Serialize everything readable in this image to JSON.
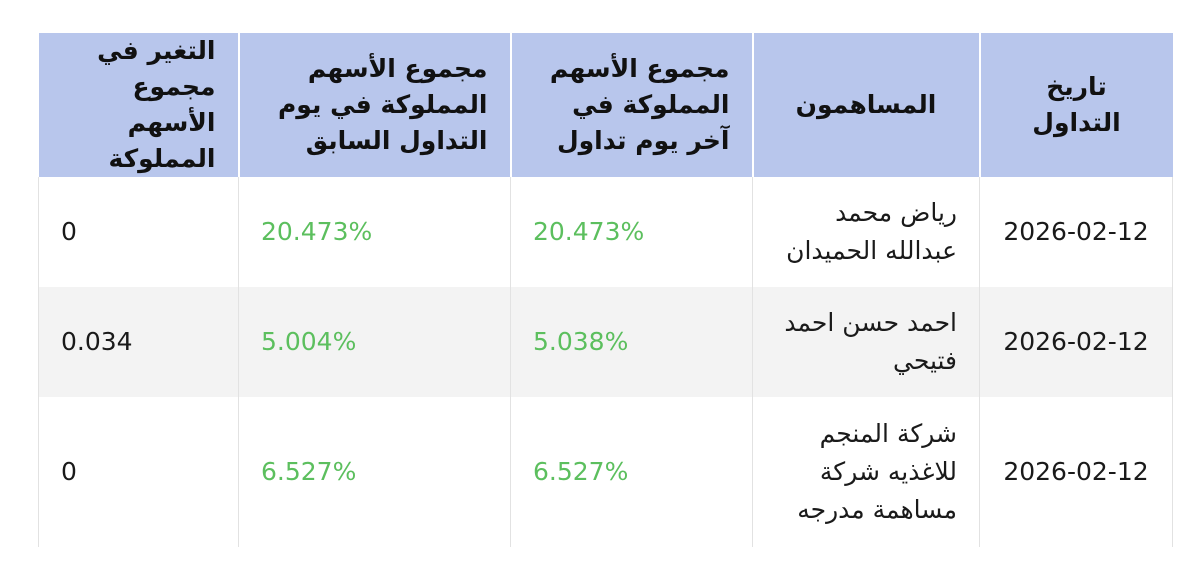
{
  "table": {
    "headers": {
      "date": "تاريخ التداول",
      "holder": "المساهمون",
      "last_day": "مجموع الأسهم المملوكة في آخر يوم تداول",
      "prev_day": "مجموع الأسهم المملوكة في يوم التداول السابق",
      "change": "التغير في مجموع الأسهم المملوكة"
    },
    "rows": [
      {
        "date": "2026-02-12",
        "holder": "رياض محمد عبدالله الحميدان",
        "last_day": "20.473%",
        "prev_day": "20.473%",
        "change": "0"
      },
      {
        "date": "2026-02-12",
        "holder": "احمد حسن احمد فتيحي",
        "last_day": "5.038%",
        "prev_day": "5.004%",
        "change": "0.034"
      },
      {
        "date": "2026-02-12",
        "holder": "شركة المنجم للاغذيه شركة مساهمة مدرجه",
        "last_day": "6.527%",
        "prev_day": "6.527%",
        "change": "0"
      }
    ]
  },
  "colors": {
    "header_bg": "#b8c6ec",
    "percent_text": "#5cbf5e",
    "alt_row_bg": "#f3f3f3"
  }
}
